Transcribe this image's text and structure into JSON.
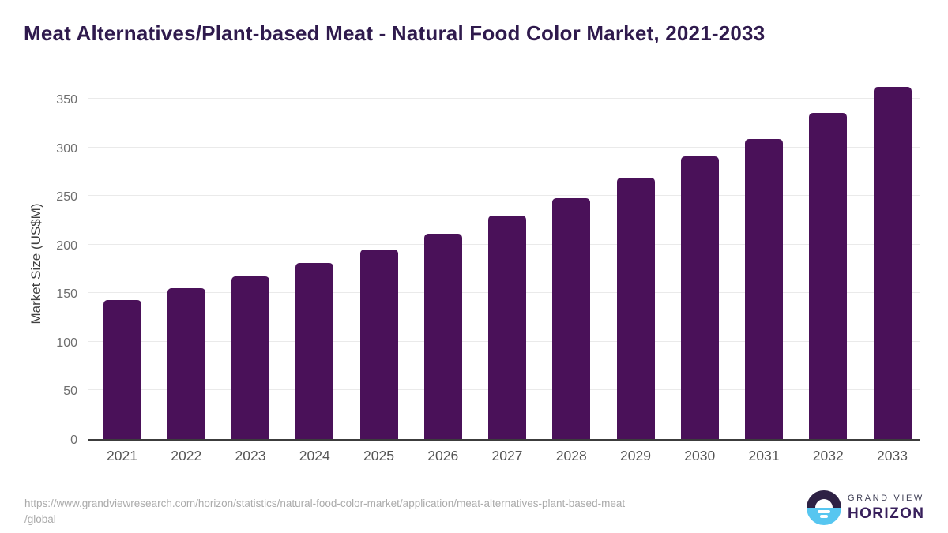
{
  "header": {
    "title": "Meat Alternatives/Plant-based Meat - Natural Food Color Market, 2021-2033"
  },
  "chart_data": {
    "type": "bar",
    "title": "Meat Alternatives/Plant-based Meat - Natural Food Color Market, 2021-2033",
    "categories": [
      "2021",
      "2022",
      "2023",
      "2024",
      "2025",
      "2026",
      "2027",
      "2028",
      "2029",
      "2030",
      "2031",
      "2032",
      "2033"
    ],
    "values": [
      143,
      155,
      167,
      181,
      195,
      211,
      230,
      248,
      269,
      291,
      309,
      335,
      362
    ],
    "xlabel": "",
    "ylabel": "Market Size (US$M)",
    "ylim": [
      0,
      372
    ],
    "yticks": [
      0,
      50,
      100,
      150,
      200,
      250,
      300,
      350
    ],
    "grid": "horizontal",
    "legend": "none",
    "bar_color": "#4A1159"
  },
  "colors": {
    "title": "#2F1A4D",
    "bar": "#4A1159",
    "gridline": "#EAEAEA",
    "axis_line": "#3C3C3C",
    "tick_text": "#6E6E6E",
    "logo_dark": "#2E2144",
    "logo_blue": "#57C6F0"
  },
  "footer": {
    "source_url_line1": "https://www.grandviewresearch.com/horizon/statistics/natural-food-color-market/application/meat-alternatives-plant-based-meat",
    "source_url_line2": "/global",
    "logo": {
      "top_text": "GRAND VIEW",
      "bottom_text": "HORIZON"
    }
  }
}
